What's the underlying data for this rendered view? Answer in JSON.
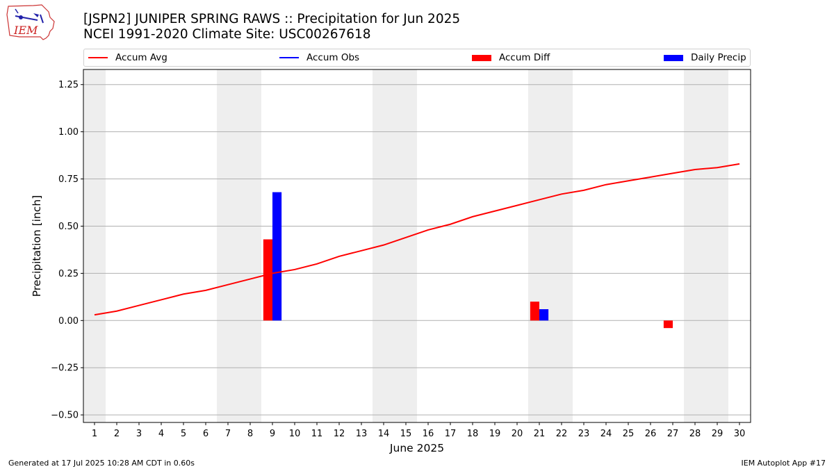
{
  "header": {
    "title_line1": "[JSPN2] JUNIPER SPRING RAWS :: Precipitation for Jun 2025",
    "title_line2": "NCEI 1991-2020 Climate Site: USC00267618",
    "logo_text": "IEM"
  },
  "legend": {
    "items": [
      {
        "label": "Accum Avg",
        "kind": "line",
        "color": "#ff0000"
      },
      {
        "label": "Accum Obs",
        "kind": "line",
        "color": "#0000ff"
      },
      {
        "label": "Accum Diff",
        "kind": "box",
        "color": "#ff0000"
      },
      {
        "label": "Daily Precip",
        "kind": "box",
        "color": "#0000ff"
      }
    ]
  },
  "footer": {
    "left": "Generated at 17 Jul 2025 10:28 AM CDT in 0.60s",
    "right": "IEM Autoplot App #17"
  },
  "chart_data": {
    "type": "bar",
    "xlabel": "June 2025",
    "ylabel": "Precipitation [inch]",
    "x": [
      1,
      2,
      3,
      4,
      5,
      6,
      7,
      8,
      9,
      10,
      11,
      12,
      13,
      14,
      15,
      16,
      17,
      18,
      19,
      20,
      21,
      22,
      23,
      24,
      25,
      26,
      27,
      28,
      29,
      30
    ],
    "ylim": [
      -0.54,
      1.33
    ],
    "yticks": [
      -0.5,
      -0.25,
      0.0,
      0.25,
      0.5,
      0.75,
      1.0,
      1.25
    ],
    "ytick_labels": [
      "−0.50",
      "−0.25",
      "0.00",
      "0.25",
      "0.50",
      "0.75",
      "1.00",
      "1.25"
    ],
    "grid": "horizontal",
    "weekend_shading_days": [
      1,
      7,
      8,
      14,
      15,
      21,
      22,
      28,
      29
    ],
    "weekend_shading_color": "#eeeeee",
    "series": [
      {
        "name": "Accum Avg",
        "kind": "line",
        "color": "#ff0000",
        "x": [
          1,
          2,
          3,
          4,
          5,
          6,
          7,
          8,
          9,
          10,
          11,
          12,
          13,
          14,
          15,
          16,
          17,
          18,
          19,
          20,
          21,
          22,
          23,
          24,
          25,
          26,
          27,
          28,
          29,
          30
        ],
        "values": [
          0.03,
          0.05,
          0.08,
          0.11,
          0.14,
          0.16,
          0.19,
          0.22,
          0.25,
          0.27,
          0.3,
          0.34,
          0.37,
          0.4,
          0.44,
          0.48,
          0.51,
          0.55,
          0.58,
          0.61,
          0.64,
          0.67,
          0.69,
          0.72,
          0.74,
          0.76,
          0.78,
          0.8,
          0.81,
          0.83
        ]
      },
      {
        "name": "Accum Diff",
        "kind": "bar",
        "color": "#ff0000",
        "offset": "left",
        "x": [
          9,
          21,
          27
        ],
        "values": [
          0.43,
          0.1,
          -0.04
        ]
      },
      {
        "name": "Daily Precip",
        "kind": "bar",
        "color": "#0000ff",
        "offset": "right",
        "x": [
          9,
          21
        ],
        "values": [
          0.68,
          0.06
        ]
      }
    ]
  }
}
